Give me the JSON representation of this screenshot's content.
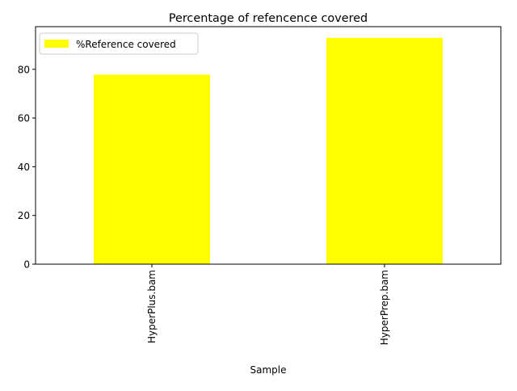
{
  "chart_data": {
    "type": "bar",
    "title": "Percentage of refencence covered",
    "xlabel": "Sample",
    "ylabel": "",
    "categories": [
      "HyperPlus.bam",
      "HyperPrep.bam"
    ],
    "series": [
      {
        "name": "%Reference covered",
        "values": [
          77.8,
          92.9
        ],
        "color": "#ffff00"
      }
    ],
    "ylim": [
      0,
      97.5
    ],
    "yticks": [
      0,
      20,
      40,
      60,
      80
    ],
    "grid": false,
    "legend_position": "top-left"
  }
}
